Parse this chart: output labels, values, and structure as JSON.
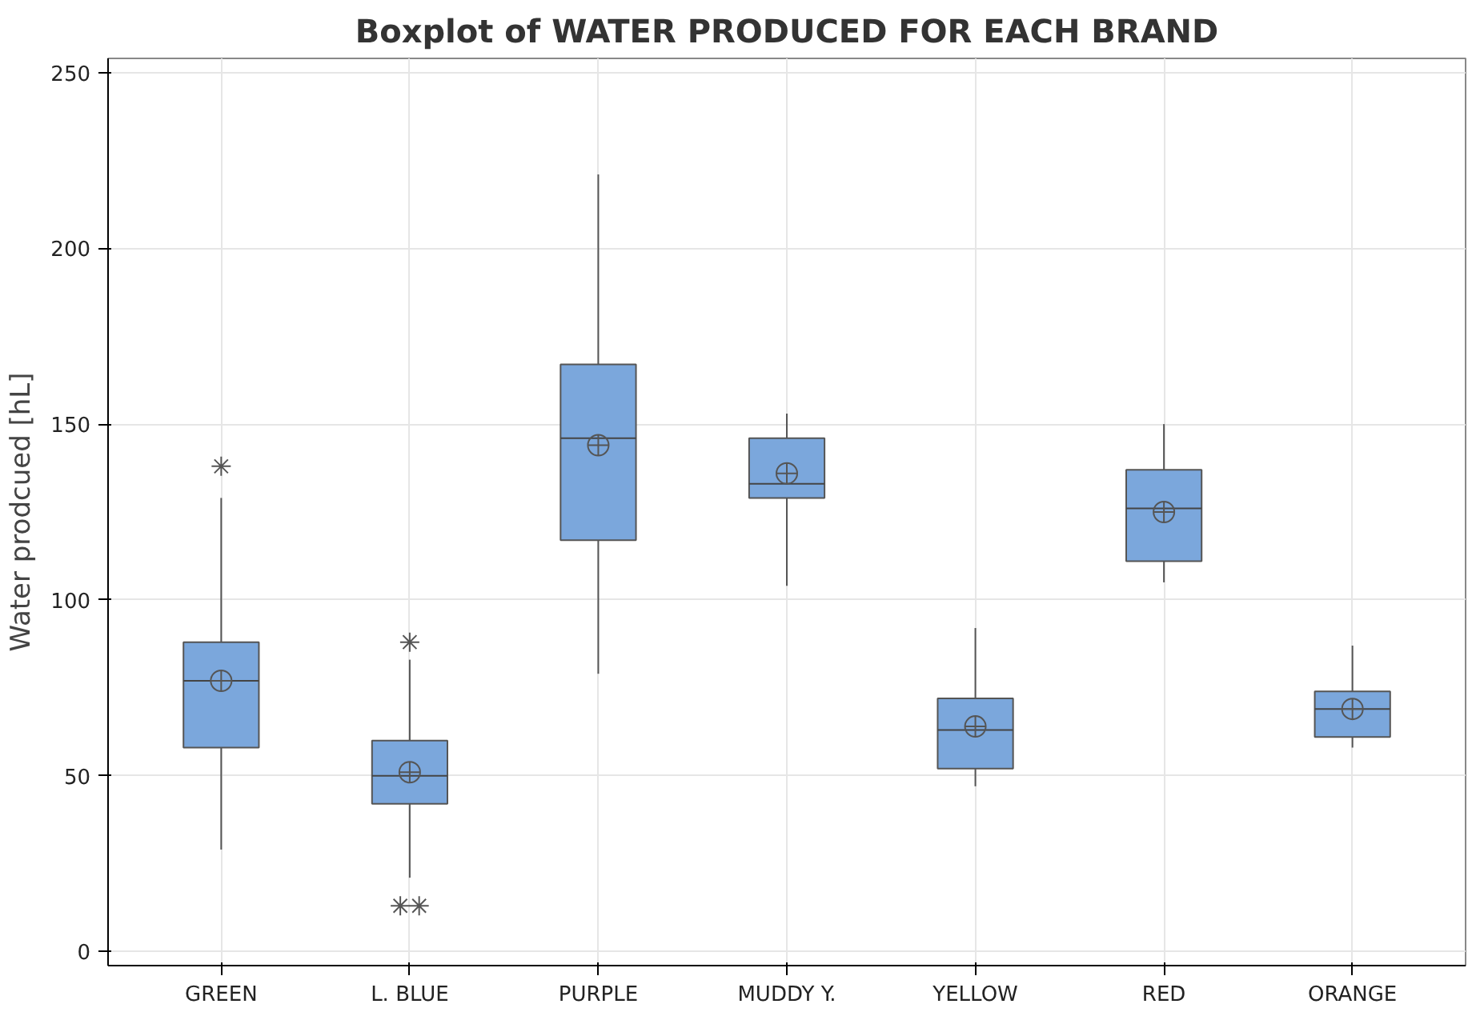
{
  "chart_data": {
    "type": "box",
    "title": "Boxplot of WATER PRODUCED FOR EACH BRAND",
    "ylabel": "Water prodcued [hL]",
    "categories": [
      "GREEN",
      "L. BLUE",
      "PURPLE",
      "MUDDY Y.",
      "YELLOW",
      "RED",
      "ORANGE"
    ],
    "color": "#7ba7dc",
    "boxes": [
      {
        "low": 29,
        "q1": 58,
        "median": 77,
        "q3": 88,
        "high": 129,
        "mean": 77,
        "outliers": [
          138
        ]
      },
      {
        "low": 21,
        "q1": 42,
        "median": 50,
        "q3": 60,
        "high": 83,
        "mean": 51,
        "outliers": [
          88,
          13,
          13
        ]
      },
      {
        "low": 79,
        "q1": 117,
        "median": 146,
        "q3": 167,
        "high": 221,
        "mean": 144
      },
      {
        "low": 104,
        "q1": 129,
        "median": 133,
        "q3": 146,
        "high": 153,
        "mean": 136
      },
      {
        "low": 47,
        "q1": 52,
        "median": 63,
        "q3": 72,
        "high": 92,
        "mean": 64
      },
      {
        "low": 105,
        "q1": 111,
        "median": 126,
        "q3": 137,
        "high": 150,
        "mean": 125
      },
      {
        "low": 58,
        "q1": 61,
        "median": 69,
        "q3": 74,
        "high": 87,
        "mean": 69
      }
    ],
    "ylim": [
      -4,
      254
    ],
    "yticks": [
      0,
      50,
      100,
      150,
      200,
      250
    ],
    "grid": true
  }
}
